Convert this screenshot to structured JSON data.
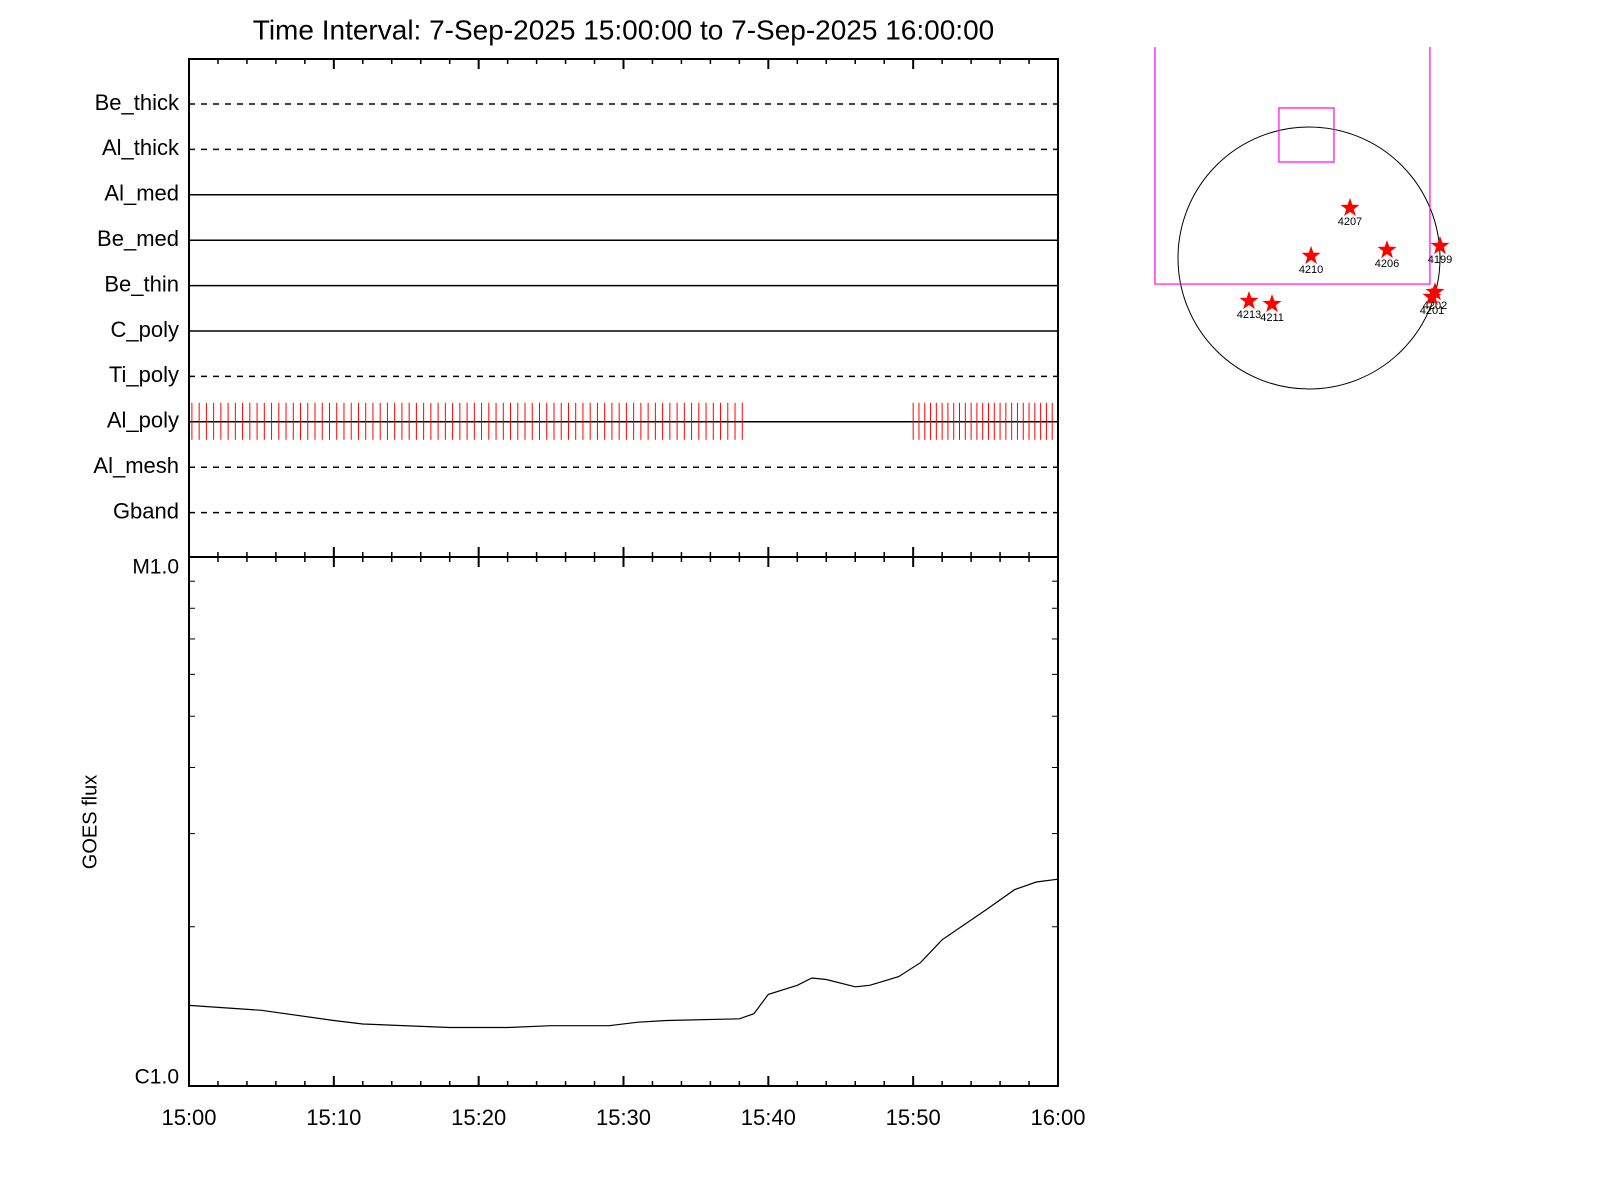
{
  "chart_data": [
    {
      "type": "timeline",
      "title": "Time Interval:  7-Sep-2025 15:00:00 to  7-Sep-2025 16:00:00",
      "xlim": [
        0,
        60
      ],
      "xticks": [
        0,
        10,
        20,
        30,
        40,
        50,
        60
      ],
      "xminor_ticks": [
        2,
        4,
        6,
        8,
        12,
        14,
        16,
        18,
        22,
        24,
        26,
        28,
        32,
        34,
        36,
        38,
        42,
        44,
        46,
        48,
        52,
        54,
        56,
        58
      ],
      "rows": [
        {
          "name": "Be_thick",
          "style": "dashed"
        },
        {
          "name": "Al_thick",
          "style": "dashed"
        },
        {
          "name": "Al_med",
          "style": "solid"
        },
        {
          "name": "Be_med",
          "style": "solid"
        },
        {
          "name": "Be_thin",
          "style": "solid"
        },
        {
          "name": "C_poly",
          "style": "solid"
        },
        {
          "name": "Ti_poly",
          "style": "dashed"
        },
        {
          "name": "Al_poly",
          "style": "solid"
        },
        {
          "name": "Al_mesh",
          "style": "dashed"
        },
        {
          "name": "Gband",
          "style": "dashed"
        }
      ],
      "series": [
        {
          "row": 7,
          "color": "#ff0000",
          "times": [
            0.2,
            0.7,
            1.2,
            1.7,
            2.2,
            2.7,
            3.2,
            3.7,
            4.2,
            4.7,
            5.2,
            5.7,
            6.2,
            6.7,
            7.2,
            7.7,
            8.2,
            8.7,
            9.2,
            9.7,
            10.2,
            10.7,
            11.2,
            11.7,
            12.2,
            12.7,
            13.2,
            13.7,
            14.2,
            14.7,
            15.2,
            15.7,
            16.2,
            16.7,
            17.2,
            17.7,
            18.2,
            18.7,
            19.2,
            19.7,
            20.2,
            20.7,
            21.2,
            21.7,
            22.2,
            22.7,
            23.2,
            23.7,
            24.2,
            24.7,
            25.2,
            25.7,
            26.2,
            26.7,
            27.2,
            27.7,
            28.2,
            28.7,
            29.2,
            29.7,
            30.2,
            30.7,
            31.2,
            31.7,
            32.2,
            32.7,
            33.2,
            33.7,
            34.2,
            34.7,
            35.2,
            35.7,
            36.2,
            36.7,
            37.2,
            37.7,
            38.2,
            50.0,
            50.4,
            50.8,
            51.2,
            51.6,
            52.0,
            52.4,
            52.8,
            53.2,
            53.6,
            54.0,
            54.4,
            54.8,
            55.2,
            55.6,
            56.0,
            56.4,
            56.8,
            57.2,
            57.6,
            58.0,
            58.4,
            58.8,
            59.2,
            59.6
          ]
        }
      ]
    },
    {
      "type": "line",
      "ylabel": "GOES flux",
      "color": "#000000",
      "ylog": true,
      "x": [
        0,
        5,
        10,
        12,
        18,
        22,
        25,
        29,
        31,
        33,
        38,
        39,
        40,
        42,
        43,
        44,
        46,
        47,
        49,
        50.5,
        52,
        55,
        57,
        58.5,
        60
      ],
      "values": [
        1.42e-06,
        1.39e-06,
        1.33e-06,
        1.31e-06,
        1.29e-06,
        1.29e-06,
        1.3e-06,
        1.3e-06,
        1.32e-06,
        1.33e-06,
        1.34e-06,
        1.37e-06,
        1.49e-06,
        1.55e-06,
        1.6e-06,
        1.59e-06,
        1.54e-06,
        1.55e-06,
        1.61e-06,
        1.71e-06,
        1.89e-06,
        2.15e-06,
        2.35e-06,
        2.43e-06,
        2.46e-06
      ],
      "xlim": [
        0,
        60
      ],
      "xticks": [
        {
          "value": 0,
          "label": "15:00"
        },
        {
          "value": 10,
          "label": "15:10"
        },
        {
          "value": 20,
          "label": "15:20"
        },
        {
          "value": 30,
          "label": "15:30"
        },
        {
          "value": 40,
          "label": "15:40"
        },
        {
          "value": 50,
          "label": "15:50"
        },
        {
          "value": 60,
          "label": "16:00"
        }
      ],
      "xminor_ticks": [
        2,
        4,
        6,
        8,
        12,
        14,
        16,
        18,
        22,
        24,
        26,
        28,
        32,
        34,
        36,
        38,
        42,
        44,
        46,
        48,
        52,
        54,
        56,
        58
      ],
      "ylim": [
        1e-06,
        1e-05
      ],
      "yticks": [
        {
          "value": 1e-06,
          "label": "C1.0"
        },
        {
          "value": 1e-05,
          "label": "M1.0"
        }
      ],
      "yminor_ticks": [
        2e-06,
        3e-06,
        4e-06,
        5e-06,
        6e-06,
        7e-06,
        8e-06,
        9e-06
      ]
    },
    {
      "type": "map",
      "disk_radius": 950,
      "color": "#ff0000",
      "box_color": "#ff00ff",
      "boxes": [
        [
          -1117,
          877,
          -189,
          1530
        ],
        [
          -218,
          181,
          696,
          1088
        ]
      ],
      "labels": [
        "4207",
        "4206",
        "4199",
        "4210",
        "4213",
        "4211",
        "4202",
        "4201"
      ],
      "x": [
        297,
        566,
        950,
        15,
        -435,
        -268,
        914,
        892
      ],
      "y": [
        363,
        58,
        87,
        15,
        -312,
        -334,
        -247,
        -283
      ]
    }
  ]
}
